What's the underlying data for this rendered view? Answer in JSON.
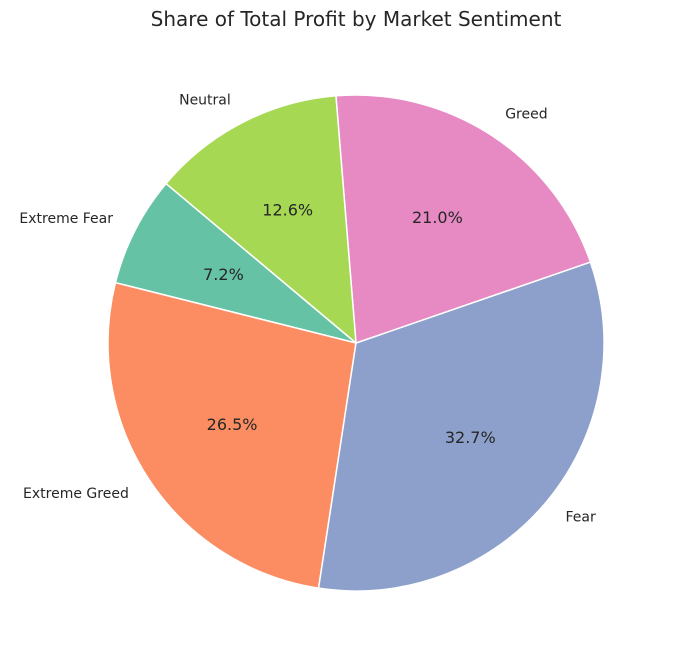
{
  "chart_data": {
    "type": "pie",
    "title": "Share of Total Profit by Market Sentiment",
    "slices": [
      {
        "label": "Extreme Fear",
        "value": 7.2,
        "value_label": "7.2%",
        "color": "#66c2a5"
      },
      {
        "label": "Extreme Greed",
        "value": 26.5,
        "value_label": "26.5%",
        "color": "#fc8d62"
      },
      {
        "label": "Fear",
        "value": 32.7,
        "value_label": "32.7%",
        "color": "#8da0cb"
      },
      {
        "label": "Greed",
        "value": 21.0,
        "value_label": "21.0%",
        "color": "#e78ac3"
      },
      {
        "label": "Neutral",
        "value": 12.6,
        "value_label": "12.6%",
        "color": "#a6d854"
      }
    ],
    "start_angle_deg": 140,
    "direction": "counterclockwise",
    "edge_color": "#ffffff"
  }
}
